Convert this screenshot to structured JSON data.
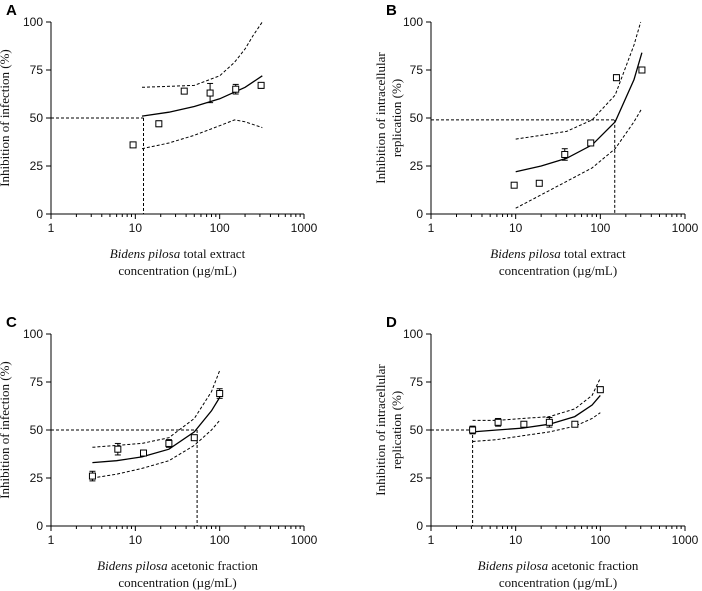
{
  "chart_data": [
    {
      "panel_label": "A",
      "type": "scatter",
      "x_scale": "log",
      "xlim": [
        1,
        1000
      ],
      "ylim": [
        0,
        100
      ],
      "x_ticks": [
        1,
        10,
        100,
        1000
      ],
      "x_tick_labels": [
        "1",
        "10",
        "100",
        "1000"
      ],
      "y_ticks": [
        0,
        25,
        50,
        75,
        100
      ],
      "y_tick_labels": [
        "0",
        "25",
        "50",
        "75",
        "100"
      ],
      "ylabel_lines": [
        "Inhibition of infection (%)"
      ],
      "xlabel_italic": "Bidens pilosa",
      "xlabel_rest": " total extract",
      "xlabel_line2": "concentration (µg/mL)",
      "points": [
        {
          "x": 9.4,
          "y": 36,
          "err": 0
        },
        {
          "x": 19,
          "y": 47,
          "err": 1.5
        },
        {
          "x": 38,
          "y": 64,
          "err": 0
        },
        {
          "x": 77,
          "y": 63,
          "err": 5
        },
        {
          "x": 155,
          "y": 65,
          "err": 2.5
        },
        {
          "x": 310,
          "y": 67,
          "err": 1.5
        }
      ],
      "fit": {
        "x": [
          12,
          25,
          50,
          100,
          200,
          320
        ],
        "y": [
          51,
          53,
          56,
          60,
          66,
          72
        ]
      },
      "ci_upper": {
        "x": [
          12,
          50,
          100,
          150,
          200,
          250,
          320
        ],
        "y": [
          66,
          67,
          72,
          79,
          86,
          93,
          100
        ]
      },
      "ci_lower": {
        "x": [
          12,
          25,
          50,
          100,
          150,
          200,
          320
        ],
        "y": [
          34,
          37,
          41,
          46,
          49,
          48,
          45
        ]
      },
      "reference": {
        "y": 50,
        "x": 12.5
      }
    },
    {
      "panel_label": "B",
      "type": "scatter",
      "x_scale": "log",
      "xlim": [
        1,
        1000
      ],
      "ylim": [
        0,
        100
      ],
      "x_ticks": [
        1,
        10,
        100,
        1000
      ],
      "x_tick_labels": [
        "1",
        "10",
        "100",
        "1000"
      ],
      "y_ticks": [
        0,
        25,
        50,
        75,
        100
      ],
      "y_tick_labels": [
        "0",
        "25",
        "50",
        "75",
        "100"
      ],
      "ylabel_lines": [
        "Inhibition of intracellular",
        "replication (%)"
      ],
      "xlabel_italic": "Bidens pilosa",
      "xlabel_rest": " total extract",
      "xlabel_line2": "concentration (µg/mL)",
      "points": [
        {
          "x": 9.6,
          "y": 15,
          "err": 0
        },
        {
          "x": 19,
          "y": 16,
          "err": 0
        },
        {
          "x": 38,
          "y": 31,
          "err": 3
        },
        {
          "x": 77,
          "y": 37,
          "err": 0
        },
        {
          "x": 155,
          "y": 71,
          "err": 1.5
        },
        {
          "x": 310,
          "y": 75,
          "err": 1
        }
      ],
      "fit": {
        "x": [
          10,
          20,
          40,
          80,
          150,
          250,
          310
        ],
        "y": [
          22,
          25,
          29,
          36,
          48,
          70,
          84
        ]
      },
      "ci_upper": {
        "x": [
          10,
          20,
          40,
          80,
          150,
          250,
          300
        ],
        "y": [
          39,
          41,
          43,
          49,
          62,
          88,
          100
        ]
      },
      "ci_lower": {
        "x": [
          10,
          20,
          40,
          80,
          150,
          250,
          310
        ],
        "y": [
          3,
          10,
          17,
          24,
          34,
          48,
          55
        ]
      },
      "reference": {
        "y": 49,
        "x": 148
      }
    },
    {
      "panel_label": "C",
      "type": "scatter",
      "x_scale": "log",
      "xlim": [
        1,
        1000
      ],
      "ylim": [
        0,
        100
      ],
      "x_ticks": [
        1,
        10,
        100,
        1000
      ],
      "x_tick_labels": [
        "1",
        "10",
        "100",
        "1000"
      ],
      "y_ticks": [
        0,
        25,
        50,
        75,
        100
      ],
      "y_tick_labels": [
        "0",
        "25",
        "50",
        "75",
        "100"
      ],
      "ylabel_lines": [
        "Inhibition of infection (%)"
      ],
      "xlabel_italic": "Bidens pilosa",
      "xlabel_rest": " acetonic fraction",
      "xlabel_line2": "concentration (µg/mL)",
      "points": [
        {
          "x": 3.1,
          "y": 26,
          "err": 2.5
        },
        {
          "x": 6.2,
          "y": 40,
          "err": 3
        },
        {
          "x": 12.5,
          "y": 38,
          "err": 1.5
        },
        {
          "x": 25,
          "y": 43,
          "err": 2
        },
        {
          "x": 50,
          "y": 46,
          "err": 0
        },
        {
          "x": 100,
          "y": 69,
          "err": 2.5
        }
      ],
      "fit": {
        "x": [
          3.1,
          6,
          12,
          25,
          50,
          80,
          100
        ],
        "y": [
          33,
          34,
          36,
          40,
          49,
          60,
          67
        ]
      },
      "ci_upper": {
        "x": [
          3.1,
          6,
          12,
          25,
          50,
          80,
          100
        ],
        "y": [
          41,
          42,
          43,
          46,
          56,
          70,
          81
        ]
      },
      "ci_lower": {
        "x": [
          3.1,
          6,
          12,
          25,
          50,
          80,
          100
        ],
        "y": [
          25,
          27,
          30,
          34,
          42,
          50,
          55
        ]
      },
      "reference": {
        "y": 50,
        "x": 54
      }
    },
    {
      "panel_label": "D",
      "type": "scatter",
      "x_scale": "log",
      "xlim": [
        1,
        1000
      ],
      "ylim": [
        0,
        100
      ],
      "x_ticks": [
        1,
        10,
        100,
        1000
      ],
      "x_tick_labels": [
        "1",
        "10",
        "100",
        "1000"
      ],
      "y_ticks": [
        0,
        25,
        50,
        75,
        100
      ],
      "y_tick_labels": [
        "0",
        "25",
        "50",
        "75",
        "100"
      ],
      "ylabel_lines": [
        "Inhibition of intracellular",
        "replication (%)"
      ],
      "xlabel_italic": "Bidens pilosa",
      "xlabel_rest": " acetonic fraction",
      "xlabel_line2": "concentration (µg/mL)",
      "points": [
        {
          "x": 3.1,
          "y": 50,
          "err": 2
        },
        {
          "x": 6.2,
          "y": 54,
          "err": 2
        },
        {
          "x": 12.5,
          "y": 53,
          "err": 0
        },
        {
          "x": 25,
          "y": 54,
          "err": 2.5
        },
        {
          "x": 50,
          "y": 53,
          "err": 0
        },
        {
          "x": 100,
          "y": 71,
          "err": 1.5
        }
      ],
      "fit": {
        "x": [
          3.1,
          6,
          12,
          25,
          50,
          80,
          100
        ],
        "y": [
          49,
          50,
          51,
          53,
          57,
          63,
          68
        ]
      },
      "ci_upper": {
        "x": [
          3.1,
          6,
          12,
          25,
          50,
          80,
          100
        ],
        "y": [
          55,
          55,
          56,
          57,
          61,
          68,
          77
        ]
      },
      "ci_lower": {
        "x": [
          3.1,
          6,
          12,
          25,
          50,
          80,
          100
        ],
        "y": [
          44,
          45,
          47,
          49,
          52,
          56,
          59
        ]
      },
      "reference": {
        "y": 50,
        "x": 3.1
      }
    }
  ]
}
